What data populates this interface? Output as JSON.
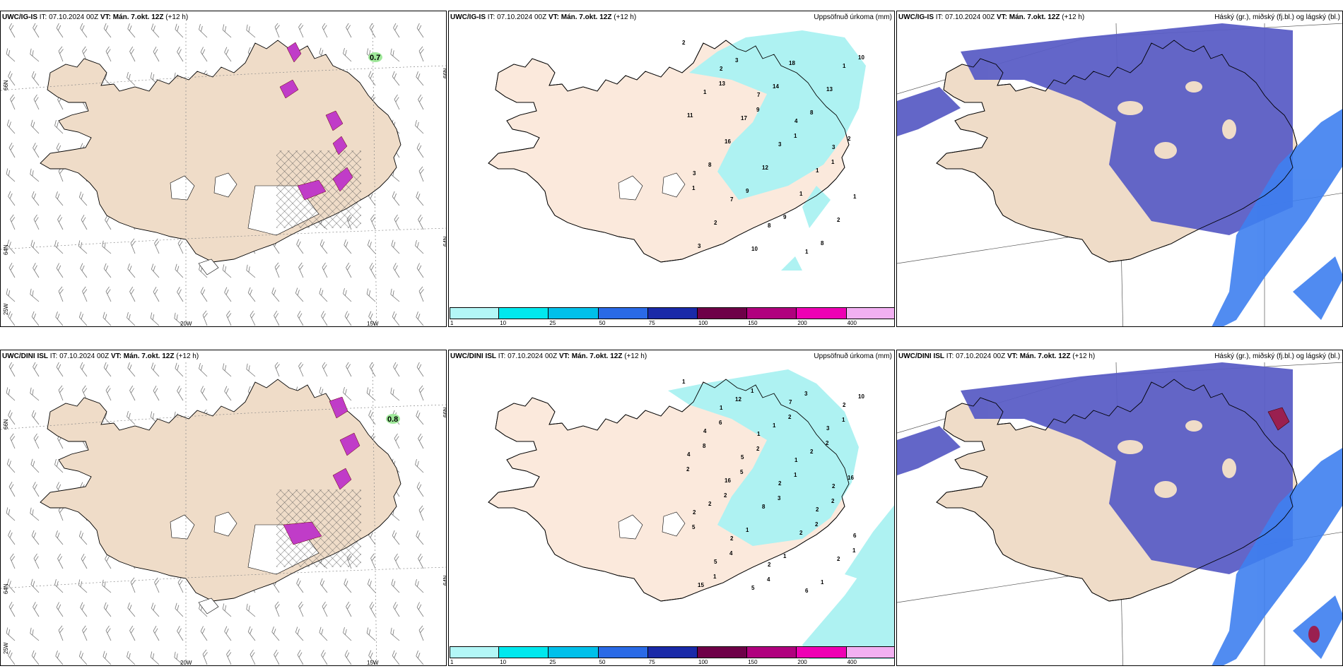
{
  "rows": [
    {
      "model": "UWC/IG-IS",
      "panels": [
        {
          "kind": "wind",
          "it_label": "IT:",
          "it": "07.10.2024 00Z",
          "vt_label": "VT:",
          "vt": "Mán. 7.okt. 12Z",
          "lead": "(+12 h)",
          "right": "",
          "marker": "0.7"
        },
        {
          "kind": "precip",
          "it_label": "IT:",
          "it": "07.10.2024 00Z",
          "vt_label": "VT:",
          "vt": "Mán. 7.okt. 12Z",
          "lead": "(+12 h)",
          "right": "Uppsöfnuð úrkoma (mm)"
        },
        {
          "kind": "cloud",
          "it_label": "IT:",
          "it": "07.10.2024 00Z",
          "vt_label": "VT:",
          "vt": "Mán. 7.okt. 12Z",
          "lead": "(+12 h)",
          "right": "Háský (gr.), miðský (fj.bl.) og lágský (bl.)"
        }
      ]
    },
    {
      "model": "UWC/DINI ISL",
      "panels": [
        {
          "kind": "wind",
          "it_label": "IT:",
          "it": "07.10.2024 00Z",
          "vt_label": "VT:",
          "vt": "Mán. 7.okt. 12Z",
          "lead": "(+12 h)",
          "right": "",
          "marker": "0.8"
        },
        {
          "kind": "precip",
          "it_label": "IT:",
          "it": "07.10.2024 00Z",
          "vt_label": "VT:",
          "vt": "Mán. 7.okt. 12Z",
          "lead": "(+12 h)",
          "right": "Uppsöfnuð úrkoma (mm)"
        },
        {
          "kind": "cloud",
          "it_label": "IT:",
          "it": "07.10.2024 00Z",
          "vt_label": "VT:",
          "vt": "Mán. 7.okt. 12Z",
          "lead": "(+12 h)",
          "right": "Háský (gr.), miðský (fj.bl.) og lágský (bl.)"
        }
      ]
    }
  ],
  "axes": {
    "lon_20": "20W",
    "lon_15": "15W",
    "lat_66": "66N",
    "lat_64": "64N",
    "lon_25": "25W"
  },
  "colorbar": {
    "labels": [
      "1",
      "10",
      "25",
      "50",
      "75",
      "100",
      "150",
      "200",
      "400"
    ],
    "colors": [
      "#b3f7f7",
      "#00e8ee",
      "#00c0ea",
      "#2a6ae6",
      "#1a2aa8",
      "#6e0048",
      "#b0007e",
      "#ee00b4",
      "#f2b0f2"
    ]
  },
  "precip_labels_top": [
    "2",
    "2",
    "7",
    "4",
    "3",
    "3",
    "7",
    "8",
    "1",
    "1",
    "1",
    "17",
    "3",
    "1",
    "1",
    "2",
    "10",
    "18",
    "13",
    "11",
    "16",
    "12",
    "1",
    "2",
    "3",
    "3",
    "14",
    "8",
    "2",
    "8",
    "9",
    "9",
    "8",
    "10",
    "13",
    "9",
    "1",
    "1",
    "1"
  ],
  "precip_labels_bottom": [
    "1",
    "1",
    "1",
    "1",
    "2",
    "2",
    "2",
    "2",
    "6",
    "2",
    "4",
    "5",
    "2",
    "2",
    "6",
    "5",
    "5",
    "7",
    "3",
    "4",
    "16",
    "8",
    "2",
    "2",
    "15",
    "12",
    "1",
    "2",
    "16",
    "2",
    "1",
    "1",
    "1",
    "10",
    "6",
    "2",
    "1",
    "2",
    "5",
    "4",
    "4",
    "3",
    "1",
    "8",
    "5",
    "3",
    "2",
    "1",
    "1",
    "1",
    "2",
    "2",
    "2",
    "2"
  ],
  "colors": {
    "land": "#efdcc8",
    "land_precip": "#fbe9dc",
    "precip_light": "#aef2f2",
    "cloud_mid": "#5b5ec6",
    "cloud_low": "#3e7ff0",
    "cloud_high": "#9a2050",
    "hatch": "#555555",
    "purple": "#c03cc8"
  }
}
